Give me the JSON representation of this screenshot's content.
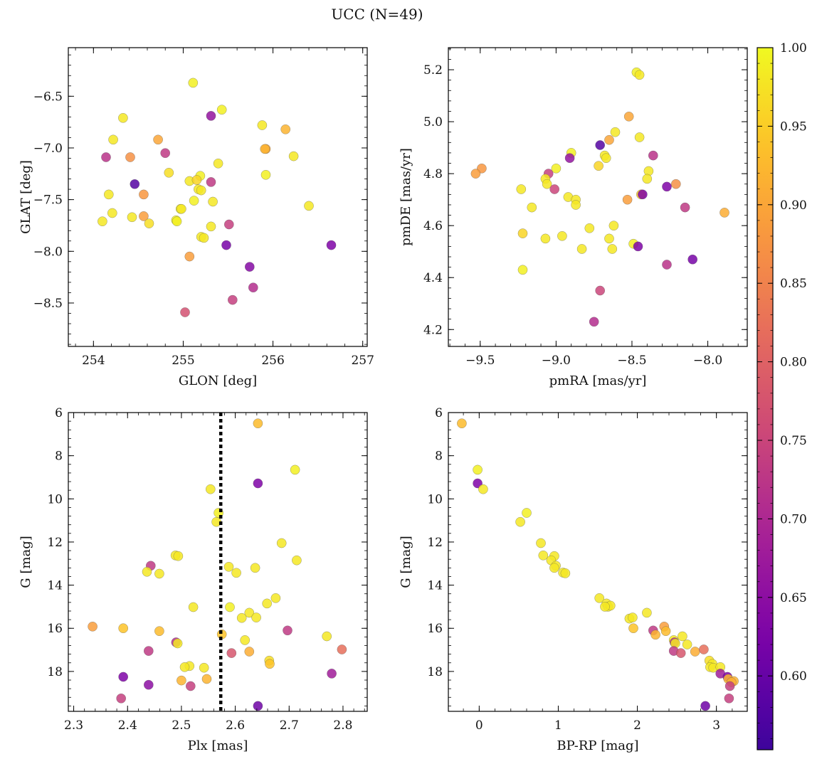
{
  "title": "UCC (N=49)",
  "colorbar": {
    "min": 0.553,
    "max": 1.0,
    "ticks": [
      0.6,
      0.65,
      0.7,
      0.75,
      0.8,
      0.85,
      0.9,
      0.95,
      1.0
    ],
    "tick_labels": [
      "0.60",
      "0.65",
      "0.70",
      "0.75",
      "0.80",
      "0.85",
      "0.90",
      "0.95",
      "1.00"
    ],
    "colormap": "plasma"
  },
  "chart_data": [
    {
      "type": "scatter",
      "id": "glon-glat",
      "xlabel": "GLON [deg]",
      "ylabel": "GLAT [deg]",
      "xlim": [
        253.72,
        257.05
      ],
      "ylim": [
        -8.92,
        -6.03
      ],
      "y_inverted": false,
      "xticks": [
        254,
        255,
        256,
        257
      ],
      "xtick_labels": [
        "254",
        "255",
        "256",
        "257"
      ],
      "yticks": [
        -8.5,
        -8.0,
        -7.5,
        -7.0,
        -6.5
      ],
      "ytick_labels": [
        "−8.5",
        "−8.0",
        "−7.5",
        "−7.0",
        "−6.5"
      ],
      "vline": null,
      "points": [
        [
          255.11,
          -6.37,
          0.99
        ],
        [
          255.43,
          -6.63,
          0.99
        ],
        [
          255.31,
          -6.69,
          0.66
        ],
        [
          254.33,
          -6.71,
          0.98
        ],
        [
          255.88,
          -6.78,
          0.98
        ],
        [
          256.14,
          -6.82,
          0.92
        ],
        [
          254.22,
          -6.92,
          0.98
        ],
        [
          254.72,
          -6.92,
          0.9
        ],
        [
          255.92,
          -7.01,
          0.9
        ],
        [
          254.14,
          -7.09,
          0.72
        ],
        [
          254.41,
          -7.09,
          0.87
        ],
        [
          254.8,
          -7.05,
          0.73
        ],
        [
          256.23,
          -7.08,
          0.98
        ],
        [
          255.39,
          -7.15,
          0.98
        ],
        [
          254.84,
          -7.24,
          0.97
        ],
        [
          255.19,
          -7.27,
          0.99
        ],
        [
          255.92,
          -7.26,
          0.99
        ],
        [
          255.07,
          -7.32,
          0.98
        ],
        [
          255.15,
          -7.31,
          0.96
        ],
        [
          255.31,
          -7.33,
          0.73
        ],
        [
          254.46,
          -7.35,
          0.58
        ],
        [
          255.17,
          -7.4,
          0.98
        ],
        [
          254.17,
          -7.45,
          0.98
        ],
        [
          254.56,
          -7.45,
          0.88
        ],
        [
          255.33,
          -7.52,
          0.98
        ],
        [
          255.12,
          -7.51,
          0.99
        ],
        [
          256.4,
          -7.56,
          0.98
        ],
        [
          254.97,
          -7.59,
          0.99
        ],
        [
          254.21,
          -7.63,
          0.98
        ],
        [
          254.56,
          -7.66,
          0.89
        ],
        [
          254.43,
          -7.67,
          0.98
        ],
        [
          254.1,
          -7.71,
          0.98
        ],
        [
          254.92,
          -7.7,
          0.99
        ],
        [
          254.62,
          -7.73,
          0.97
        ],
        [
          255.51,
          -7.74,
          0.74
        ],
        [
          255.31,
          -7.76,
          0.98
        ],
        [
          255.2,
          -7.86,
          0.98
        ],
        [
          255.23,
          -7.87,
          0.98
        ],
        [
          255.48,
          -7.94,
          0.62
        ],
        [
          256.65,
          -7.94,
          0.63
        ],
        [
          255.07,
          -8.05,
          0.89
        ],
        [
          255.74,
          -8.15,
          0.64
        ],
        [
          255.78,
          -8.35,
          0.71
        ],
        [
          255.55,
          -8.47,
          0.74
        ],
        [
          255.02,
          -8.59,
          0.77
        ],
        [
          254.93,
          -7.71,
          0.99
        ],
        [
          255.2,
          -7.41,
          0.98
        ],
        [
          254.98,
          -7.59,
          0.98
        ],
        [
          255.91,
          -7.01,
          0.92
        ]
      ]
    },
    {
      "type": "scatter",
      "id": "pmra-pmde",
      "xlabel": "pmRA [mas/yr]",
      "ylabel": "pmDE [mas/yr]",
      "xlim": [
        -9.71,
        -7.74
      ],
      "ylim": [
        4.135,
        5.285
      ],
      "y_inverted": false,
      "xticks": [
        -9.5,
        -9.0,
        -8.5,
        -8.0
      ],
      "xtick_labels": [
        "−9.5",
        "−9.0",
        "−8.5",
        "−8.0"
      ],
      "yticks": [
        4.2,
        4.4,
        4.6,
        4.8,
        5.0,
        5.2
      ],
      "ytick_labels": [
        "4.2",
        "4.4",
        "4.6",
        "4.8",
        "5.0",
        "5.2"
      ],
      "vline": null,
      "points": [
        [
          -8.47,
          5.19,
          0.99
        ],
        [
          -8.45,
          5.18,
          0.98
        ],
        [
          -8.52,
          5.02,
          0.9
        ],
        [
          -8.61,
          4.96,
          0.98
        ],
        [
          -8.45,
          4.94,
          0.98
        ],
        [
          -8.65,
          4.93,
          0.9
        ],
        [
          -8.71,
          4.91,
          0.58
        ],
        [
          -8.9,
          4.88,
          0.99
        ],
        [
          -8.91,
          4.86,
          0.66
        ],
        [
          -8.68,
          4.87,
          0.98
        ],
        [
          -8.67,
          4.86,
          0.98
        ],
        [
          -8.36,
          4.87,
          0.72
        ],
        [
          -9.0,
          4.82,
          0.99
        ],
        [
          -8.72,
          4.83,
          0.96
        ],
        [
          -9.49,
          4.82,
          0.88
        ],
        [
          -9.53,
          4.8,
          0.89
        ],
        [
          -8.39,
          4.81,
          0.98
        ],
        [
          -9.05,
          4.8,
          0.74
        ],
        [
          -9.07,
          4.78,
          0.98
        ],
        [
          -8.4,
          4.78,
          0.98
        ],
        [
          -9.06,
          4.76,
          0.98
        ],
        [
          -8.21,
          4.76,
          0.87
        ],
        [
          -9.01,
          4.74,
          0.75
        ],
        [
          -9.23,
          4.74,
          0.98
        ],
        [
          -8.27,
          4.75,
          0.63
        ],
        [
          -8.44,
          4.72,
          0.95
        ],
        [
          -8.43,
          4.72,
          0.63
        ],
        [
          -8.92,
          4.71,
          0.98
        ],
        [
          -8.87,
          4.7,
          0.98
        ],
        [
          -8.53,
          4.7,
          0.89
        ],
        [
          -8.87,
          4.68,
          0.98
        ],
        [
          -9.16,
          4.67,
          0.98
        ],
        [
          -7.89,
          4.65,
          0.91
        ],
        [
          -8.15,
          4.67,
          0.73
        ],
        [
          -8.62,
          4.6,
          0.98
        ],
        [
          -8.78,
          4.59,
          0.98
        ],
        [
          -9.22,
          4.57,
          0.96
        ],
        [
          -9.07,
          4.55,
          0.98
        ],
        [
          -8.96,
          4.56,
          0.98
        ],
        [
          -8.65,
          4.55,
          0.98
        ],
        [
          -8.49,
          4.53,
          0.99
        ],
        [
          -8.46,
          4.52,
          0.63
        ],
        [
          -8.83,
          4.51,
          0.98
        ],
        [
          -8.63,
          4.51,
          0.98
        ],
        [
          -8.1,
          4.47,
          0.62
        ],
        [
          -8.27,
          4.45,
          0.72
        ],
        [
          -9.22,
          4.43,
          0.99
        ],
        [
          -8.71,
          4.35,
          0.75
        ],
        [
          -8.75,
          4.23,
          0.71
        ]
      ]
    },
    {
      "type": "scatter",
      "id": "plx-g",
      "xlabel": "Plx [mas]",
      "ylabel": "G [mag]",
      "xlim": [
        2.29,
        2.845
      ],
      "ylim": [
        19.85,
        6.0
      ],
      "y_inverted": true,
      "xticks": [
        2.3,
        2.4,
        2.5,
        2.6,
        2.7,
        2.8
      ],
      "xtick_labels": [
        "2.3",
        "2.4",
        "2.5",
        "2.6",
        "2.7",
        "2.8"
      ],
      "yticks": [
        6,
        8,
        10,
        12,
        14,
        16,
        18
      ],
      "ytick_labels": [
        "6",
        "8",
        "10",
        "12",
        "14",
        "16",
        "18"
      ],
      "vline": 2.573,
      "points": [
        [
          2.642,
          6.5,
          0.93
        ],
        [
          2.711,
          8.65,
          0.99
        ],
        [
          2.642,
          9.28,
          0.63
        ],
        [
          2.554,
          9.55,
          0.98
        ],
        [
          2.569,
          10.65,
          0.99
        ],
        [
          2.565,
          11.07,
          0.98
        ],
        [
          2.686,
          12.05,
          0.98
        ],
        [
          2.489,
          12.62,
          0.98
        ],
        [
          2.494,
          12.65,
          0.98
        ],
        [
          2.714,
          12.85,
          0.98
        ],
        [
          2.443,
          13.1,
          0.73
        ],
        [
          2.436,
          13.38,
          0.98
        ],
        [
          2.459,
          13.47,
          0.98
        ],
        [
          2.588,
          13.15,
          0.98
        ],
        [
          2.602,
          13.43,
          0.98
        ],
        [
          2.637,
          13.2,
          0.98
        ],
        [
          2.659,
          14.85,
          0.98
        ],
        [
          2.675,
          14.6,
          0.98
        ],
        [
          2.522,
          15.02,
          0.98
        ],
        [
          2.59,
          15.02,
          0.99
        ],
        [
          2.626,
          15.28,
          0.98
        ],
        [
          2.612,
          15.52,
          0.98
        ],
        [
          2.639,
          15.5,
          0.98
        ],
        [
          2.335,
          15.92,
          0.89
        ],
        [
          2.392,
          16.0,
          0.94
        ],
        [
          2.459,
          16.13,
          0.93
        ],
        [
          2.575,
          16.28,
          0.94
        ],
        [
          2.697,
          16.1,
          0.73
        ],
        [
          2.77,
          16.37,
          0.98
        ],
        [
          2.618,
          16.55,
          0.98
        ],
        [
          2.49,
          16.65,
          0.71
        ],
        [
          2.493,
          16.7,
          0.98
        ],
        [
          2.798,
          16.98,
          0.82
        ],
        [
          2.439,
          17.05,
          0.73
        ],
        [
          2.593,
          17.15,
          0.78
        ],
        [
          2.626,
          17.08,
          0.91
        ],
        [
          2.663,
          17.5,
          0.97
        ],
        [
          2.664,
          17.65,
          0.94
        ],
        [
          2.515,
          17.75,
          0.98
        ],
        [
          2.506,
          17.8,
          0.98
        ],
        [
          2.542,
          17.83,
          0.98
        ],
        [
          2.392,
          18.25,
          0.63
        ],
        [
          2.779,
          18.1,
          0.68
        ],
        [
          2.5,
          18.42,
          0.92
        ],
        [
          2.547,
          18.35,
          0.92
        ],
        [
          2.439,
          18.62,
          0.65
        ],
        [
          2.517,
          18.68,
          0.74
        ],
        [
          2.388,
          19.25,
          0.74
        ],
        [
          2.642,
          19.6,
          0.61
        ]
      ]
    },
    {
      "type": "scatter",
      "id": "bprp-g",
      "xlabel": "BP-RP [mag]",
      "ylabel": "G [mag]",
      "xlim": [
        -0.39,
        3.39
      ],
      "ylim": [
        19.85,
        6.0
      ],
      "y_inverted": true,
      "xticks": [
        0,
        1,
        2,
        3
      ],
      "xtick_labels": [
        "0",
        "1",
        "2",
        "3"
      ],
      "yticks": [
        6,
        8,
        10,
        12,
        14,
        16,
        18
      ],
      "ytick_labels": [
        "6",
        "8",
        "10",
        "12",
        "14",
        "16",
        "18"
      ],
      "vline": null,
      "points": [
        [
          -0.22,
          6.5,
          0.93
        ],
        [
          -0.02,
          8.65,
          0.99
        ],
        [
          -0.02,
          9.28,
          0.63
        ],
        [
          0.05,
          9.55,
          0.98
        ],
        [
          0.6,
          10.65,
          0.99
        ],
        [
          0.52,
          11.07,
          0.98
        ],
        [
          0.78,
          12.05,
          0.98
        ],
        [
          0.81,
          12.62,
          0.98
        ],
        [
          0.95,
          12.65,
          0.98
        ],
        [
          0.91,
          12.85,
          0.98
        ],
        [
          0.97,
          13.1,
          0.98
        ],
        [
          0.95,
          13.2,
          0.98
        ],
        [
          1.06,
          13.42,
          0.98
        ],
        [
          1.09,
          13.45,
          0.98
        ],
        [
          1.52,
          14.6,
          0.98
        ],
        [
          1.61,
          14.85,
          0.98
        ],
        [
          1.63,
          15.0,
          0.98
        ],
        [
          1.66,
          14.95,
          0.98
        ],
        [
          1.59,
          15.0,
          0.98
        ],
        [
          2.12,
          15.28,
          0.98
        ],
        [
          1.9,
          15.55,
          0.98
        ],
        [
          1.94,
          15.5,
          0.98
        ],
        [
          1.95,
          16.0,
          0.94
        ],
        [
          2.2,
          16.1,
          0.73
        ],
        [
          2.23,
          16.3,
          0.92
        ],
        [
          2.34,
          15.92,
          0.89
        ],
        [
          2.36,
          16.13,
          0.93
        ],
        [
          2.57,
          16.37,
          0.98
        ],
        [
          2.46,
          16.55,
          0.98
        ],
        [
          2.47,
          16.65,
          0.71
        ],
        [
          2.48,
          16.7,
          0.98
        ],
        [
          2.63,
          16.75,
          0.98
        ],
        [
          2.46,
          17.05,
          0.73
        ],
        [
          2.55,
          17.15,
          0.78
        ],
        [
          2.73,
          17.08,
          0.91
        ],
        [
          2.84,
          16.98,
          0.82
        ],
        [
          2.91,
          17.5,
          0.97
        ],
        [
          2.95,
          17.65,
          0.98
        ],
        [
          2.92,
          17.8,
          0.98
        ],
        [
          2.96,
          17.83,
          0.98
        ],
        [
          3.05,
          17.8,
          0.98
        ],
        [
          3.05,
          18.1,
          0.68
        ],
        [
          3.14,
          18.25,
          0.63
        ],
        [
          3.15,
          18.35,
          0.92
        ],
        [
          3.22,
          18.45,
          0.92
        ],
        [
          3.19,
          18.5,
          0.91
        ],
        [
          3.17,
          18.68,
          0.74
        ],
        [
          3.16,
          19.25,
          0.74
        ],
        [
          2.86,
          19.6,
          0.61
        ]
      ]
    }
  ]
}
